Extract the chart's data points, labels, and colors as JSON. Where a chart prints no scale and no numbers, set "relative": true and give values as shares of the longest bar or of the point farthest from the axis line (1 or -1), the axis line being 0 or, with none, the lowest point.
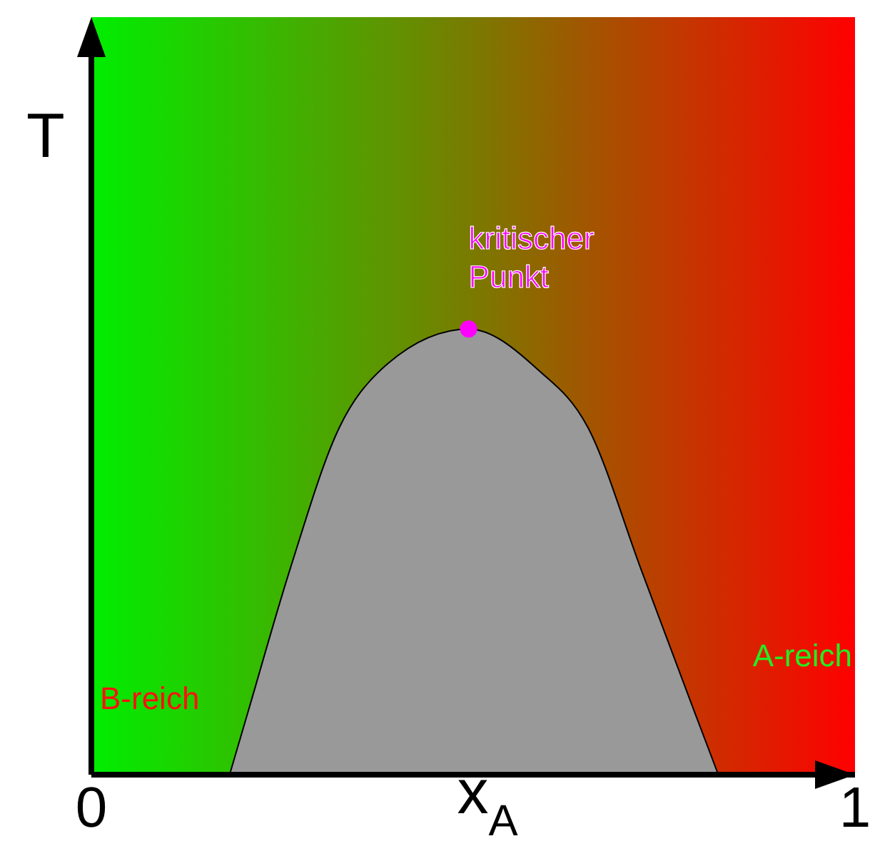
{
  "chart_data": {
    "type": "area",
    "relative": true,
    "xlabel": "x$_{A}$",
    "ylabel": "T",
    "xlim": [
      0,
      1
    ],
    "xticks": [
      0,
      1
    ],
    "x": [
      0.181,
      0.205,
      0.26,
      0.325,
      0.38,
      0.494,
      0.584,
      0.65,
      0.72,
      0.79,
      0.821
    ],
    "series": [
      {
        "color": "#999999",
        "values": [
          0,
          0.14,
          0.46,
          0.78,
          0.91,
          1,
          0.91,
          0.78,
          0.46,
          0.14,
          0
        ]
      }
    ],
    "annotations": [
      {
        "text": "kritischer Punkt",
        "x": 0.494,
        "y": 1
      },
      "B-reich",
      "A-reich"
    ]
  }
}
